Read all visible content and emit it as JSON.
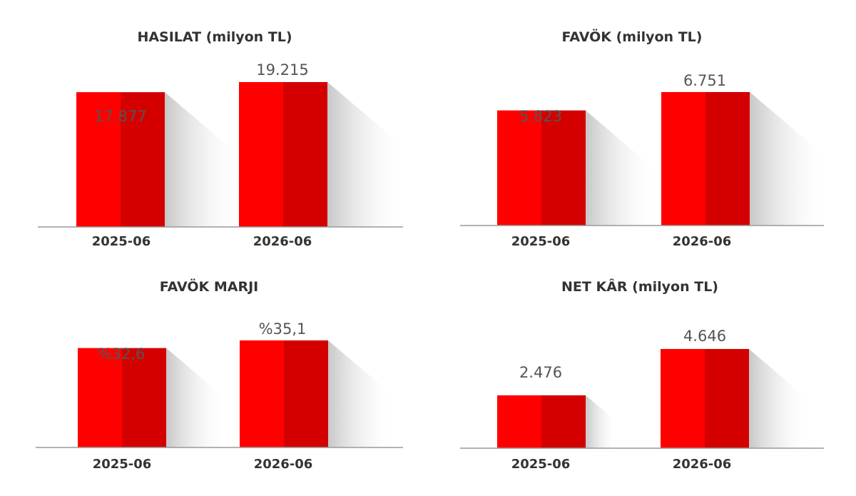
{
  "chart_data": [
    {
      "type": "bar",
      "title": "HASILAT (milyon TL)",
      "categories": [
        "2025-06",
        "2026-06"
      ],
      "values": [
        17877,
        19215
      ],
      "value_labels": [
        "17.877",
        "19.215"
      ],
      "colors": {
        "front": "#ff0000",
        "side": "#d40000",
        "axis": "#999999"
      }
    },
    {
      "type": "bar",
      "title": "FAVÖK (milyon TL)",
      "categories": [
        "2025-06",
        "2026-06"
      ],
      "values": [
        5823,
        6751
      ],
      "value_labels": [
        "5.823",
        "6.751"
      ],
      "colors": {
        "front": "#ff0000",
        "side": "#d40000",
        "axis": "#999999"
      }
    },
    {
      "type": "bar",
      "title": "FAVÖK MARJI",
      "categories": [
        "2025-06",
        "2026-06"
      ],
      "values": [
        32.6,
        35.1
      ],
      "value_labels": [
        "%32,6",
        "%35,1"
      ],
      "colors": {
        "front": "#ff0000",
        "side": "#d40000",
        "axis": "#999999"
      }
    },
    {
      "type": "bar",
      "title": "NET KÂR (milyon TL)",
      "categories": [
        "2025-06",
        "2026-06"
      ],
      "values": [
        2476,
        4646
      ],
      "value_labels": [
        "2.476",
        "4.646"
      ],
      "colors": {
        "front": "#ff0000",
        "side": "#d40000",
        "axis": "#999999"
      }
    }
  ]
}
